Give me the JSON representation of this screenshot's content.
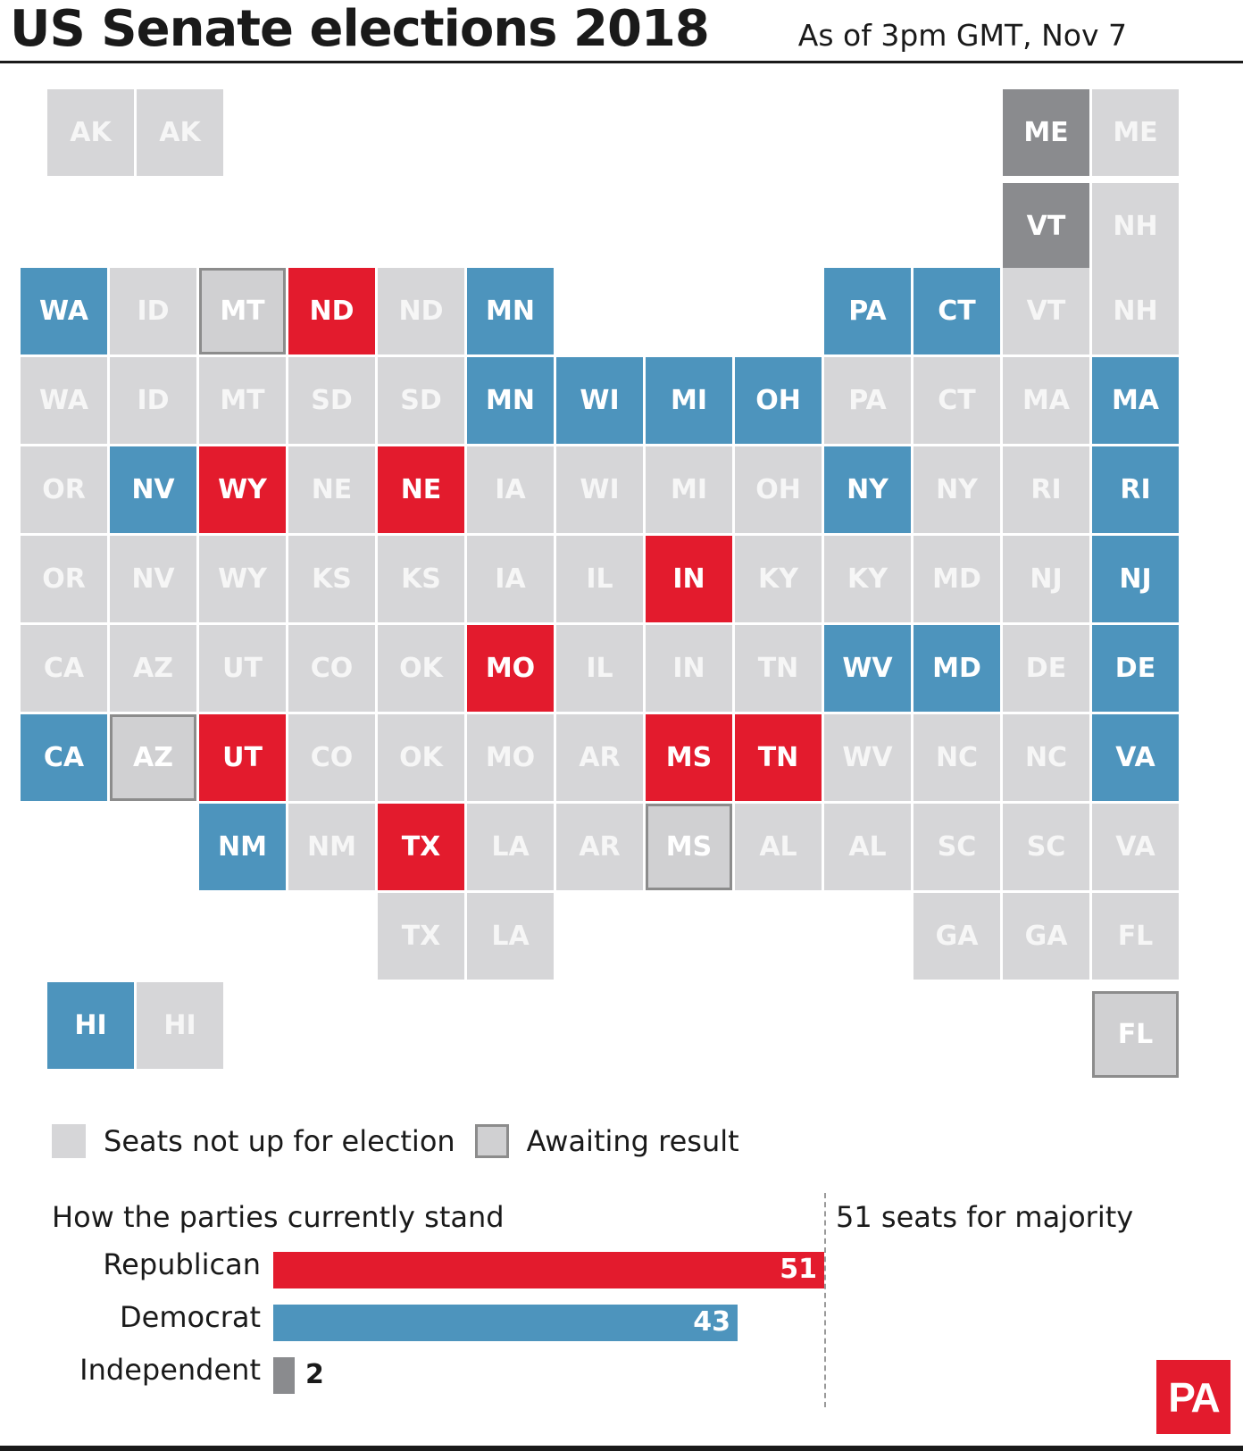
{
  "title": "US Senate elections 2018",
  "subtitle": "As of 3pm GMT, Nov 7",
  "colors": {
    "republican": "#e31b2d",
    "democrat": "#4d94bd",
    "independent": "#8a8b8e",
    "not_up": "#d6d6d8",
    "awaiting": "#d0d0d2"
  },
  "legend": {
    "not_up": "Seats not up for election",
    "awaiting": "Awaiting result"
  },
  "chart_data": {
    "type": "bar",
    "title": "How the parties currently stand",
    "categories": [
      "Republican",
      "Democrat",
      "Independent"
    ],
    "values": [
      51,
      43,
      2
    ],
    "value_labels": [
      "51",
      "43",
      "2"
    ],
    "majority_line": 51,
    "majority_label": "51 seats for majority",
    "seat_map": [
      {
        "state": "AK",
        "status": "not_up"
      },
      {
        "state": "AK",
        "status": "not_up"
      },
      {
        "state": "ME",
        "status": "independent"
      },
      {
        "state": "ME",
        "status": "not_up"
      },
      {
        "state": "VT",
        "status": "independent"
      },
      {
        "state": "NH",
        "status": "not_up"
      },
      {
        "state": "WA",
        "status": "democrat"
      },
      {
        "state": "ID",
        "status": "not_up"
      },
      {
        "state": "MT",
        "status": "awaiting"
      },
      {
        "state": "ND",
        "status": "republican"
      },
      {
        "state": "ND",
        "status": "not_up"
      },
      {
        "state": "MN",
        "status": "democrat"
      },
      {
        "state": "PA",
        "status": "democrat"
      },
      {
        "state": "CT",
        "status": "democrat"
      },
      {
        "state": "VT",
        "status": "not_up"
      },
      {
        "state": "NH",
        "status": "not_up"
      },
      {
        "state": "WA",
        "status": "not_up"
      },
      {
        "state": "ID",
        "status": "not_up"
      },
      {
        "state": "MT",
        "status": "not_up"
      },
      {
        "state": "SD",
        "status": "not_up"
      },
      {
        "state": "SD",
        "status": "not_up"
      },
      {
        "state": "MN",
        "status": "democrat"
      },
      {
        "state": "WI",
        "status": "democrat"
      },
      {
        "state": "MI",
        "status": "democrat"
      },
      {
        "state": "OH",
        "status": "democrat"
      },
      {
        "state": "PA",
        "status": "not_up"
      },
      {
        "state": "CT",
        "status": "not_up"
      },
      {
        "state": "MA",
        "status": "not_up"
      },
      {
        "state": "MA",
        "status": "democrat"
      },
      {
        "state": "OR",
        "status": "not_up"
      },
      {
        "state": "NV",
        "status": "democrat"
      },
      {
        "state": "WY",
        "status": "republican"
      },
      {
        "state": "NE",
        "status": "not_up"
      },
      {
        "state": "NE",
        "status": "republican"
      },
      {
        "state": "IA",
        "status": "not_up"
      },
      {
        "state": "WI",
        "status": "not_up"
      },
      {
        "state": "MI",
        "status": "not_up"
      },
      {
        "state": "OH",
        "status": "not_up"
      },
      {
        "state": "NY",
        "status": "democrat"
      },
      {
        "state": "NY",
        "status": "not_up"
      },
      {
        "state": "RI",
        "status": "not_up"
      },
      {
        "state": "RI",
        "status": "democrat"
      },
      {
        "state": "OR",
        "status": "not_up"
      },
      {
        "state": "NV",
        "status": "not_up"
      },
      {
        "state": "WY",
        "status": "not_up"
      },
      {
        "state": "KS",
        "status": "not_up"
      },
      {
        "state": "KS",
        "status": "not_up"
      },
      {
        "state": "IA",
        "status": "not_up"
      },
      {
        "state": "IL",
        "status": "not_up"
      },
      {
        "state": "IN",
        "status": "republican"
      },
      {
        "state": "KY",
        "status": "not_up"
      },
      {
        "state": "KY",
        "status": "not_up"
      },
      {
        "state": "MD",
        "status": "not_up"
      },
      {
        "state": "NJ",
        "status": "not_up"
      },
      {
        "state": "NJ",
        "status": "democrat"
      },
      {
        "state": "CA",
        "status": "not_up"
      },
      {
        "state": "AZ",
        "status": "not_up"
      },
      {
        "state": "UT",
        "status": "not_up"
      },
      {
        "state": "CO",
        "status": "not_up"
      },
      {
        "state": "OK",
        "status": "not_up"
      },
      {
        "state": "MO",
        "status": "republican"
      },
      {
        "state": "IL",
        "status": "not_up"
      },
      {
        "state": "IN",
        "status": "not_up"
      },
      {
        "state": "TN",
        "status": "not_up"
      },
      {
        "state": "WV",
        "status": "democrat"
      },
      {
        "state": "MD",
        "status": "democrat"
      },
      {
        "state": "DE",
        "status": "not_up"
      },
      {
        "state": "DE",
        "status": "democrat"
      },
      {
        "state": "CA",
        "status": "democrat"
      },
      {
        "state": "AZ",
        "status": "awaiting"
      },
      {
        "state": "UT",
        "status": "republican"
      },
      {
        "state": "CO",
        "status": "not_up"
      },
      {
        "state": "OK",
        "status": "not_up"
      },
      {
        "state": "MO",
        "status": "not_up"
      },
      {
        "state": "AR",
        "status": "not_up"
      },
      {
        "state": "MS",
        "status": "republican"
      },
      {
        "state": "TN",
        "status": "republican"
      },
      {
        "state": "WV",
        "status": "not_up"
      },
      {
        "state": "NC",
        "status": "not_up"
      },
      {
        "state": "NC",
        "status": "not_up"
      },
      {
        "state": "VA",
        "status": "democrat"
      },
      {
        "state": "NM",
        "status": "democrat"
      },
      {
        "state": "NM",
        "status": "not_up"
      },
      {
        "state": "TX",
        "status": "republican"
      },
      {
        "state": "LA",
        "status": "not_up"
      },
      {
        "state": "AR",
        "status": "not_up"
      },
      {
        "state": "MS",
        "status": "awaiting"
      },
      {
        "state": "AL",
        "status": "not_up"
      },
      {
        "state": "AL",
        "status": "not_up"
      },
      {
        "state": "SC",
        "status": "not_up"
      },
      {
        "state": "SC",
        "status": "not_up"
      },
      {
        "state": "VA",
        "status": "not_up"
      },
      {
        "state": "TX",
        "status": "not_up"
      },
      {
        "state": "LA",
        "status": "not_up"
      },
      {
        "state": "GA",
        "status": "not_up"
      },
      {
        "state": "GA",
        "status": "not_up"
      },
      {
        "state": "FL",
        "status": "not_up"
      },
      {
        "state": "HI",
        "status": "democrat"
      },
      {
        "state": "HI",
        "status": "not_up"
      },
      {
        "state": "FL",
        "status": "awaiting"
      }
    ]
  },
  "logo": "PA"
}
